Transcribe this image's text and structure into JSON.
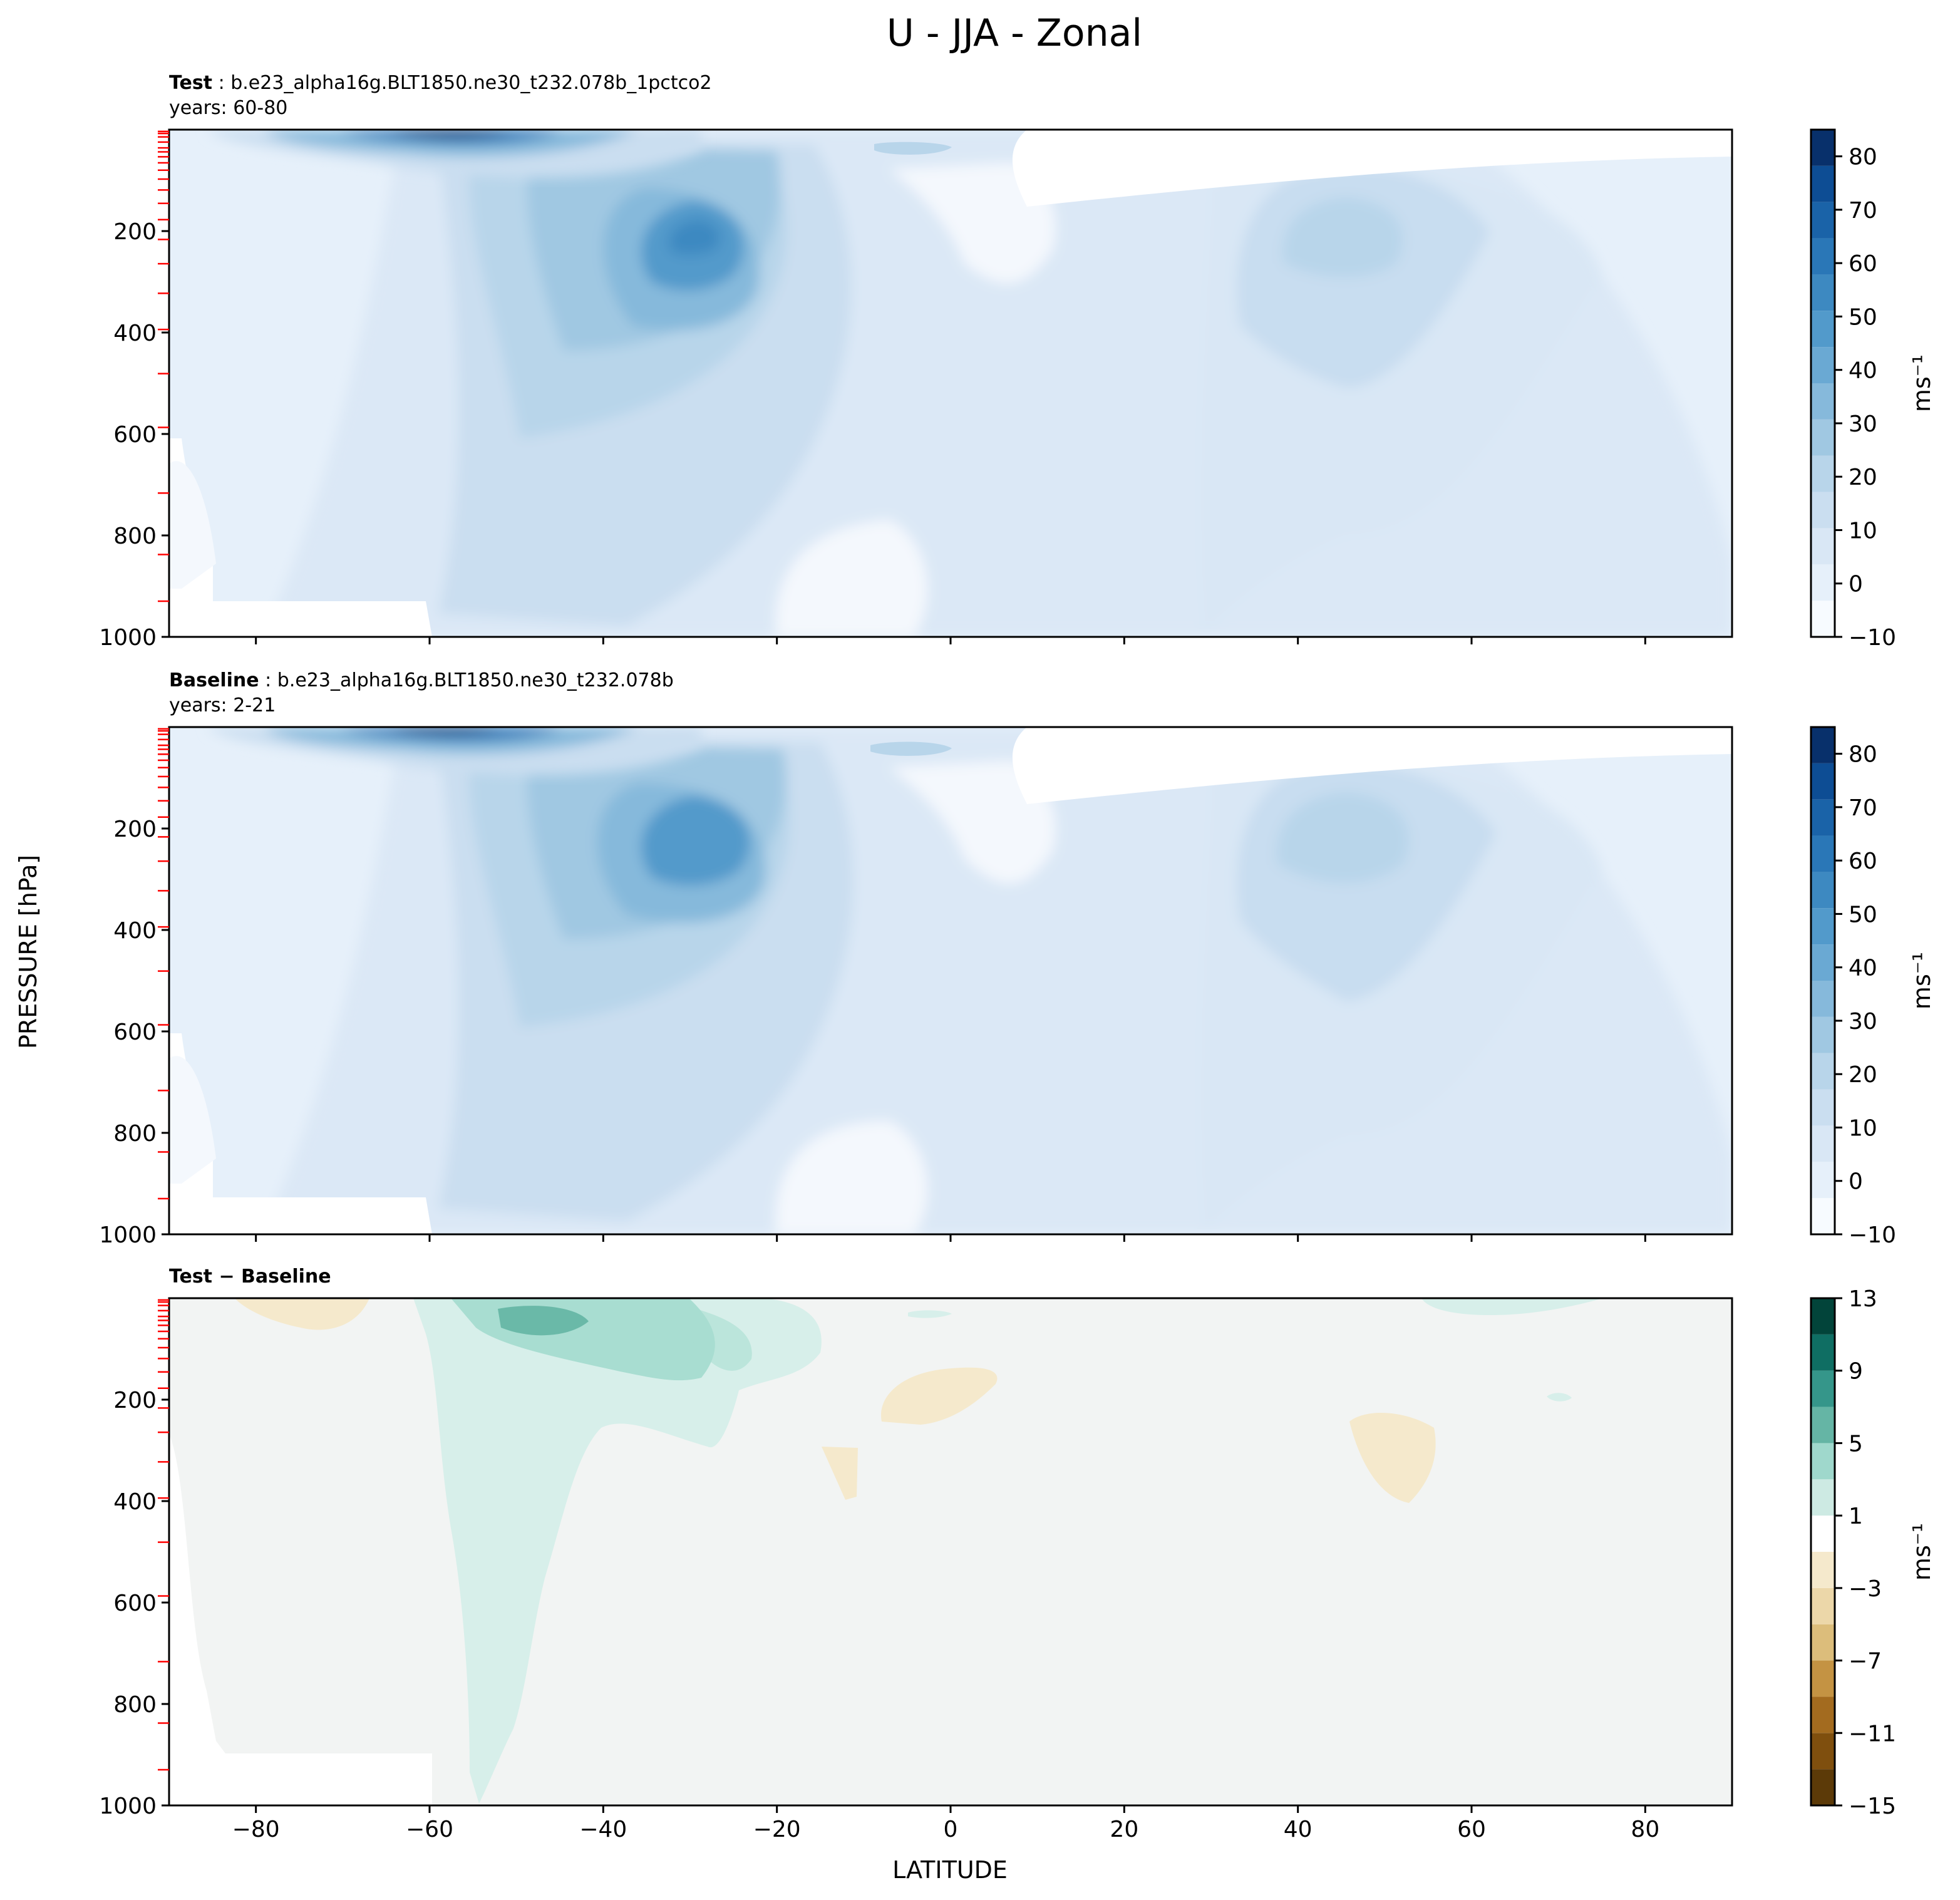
{
  "figure": {
    "title": "U - JJA - Zonal",
    "xlabel": "LATITUDE",
    "ylabel": "PRESSURE [hPa]"
  },
  "colors": {
    "blues": [
      "#f7fbff",
      "#e6f0fa",
      "#d9e7f5",
      "#cadef0",
      "#b8d5ea",
      "#a0c8e2",
      "#86b9db",
      "#6aa9d3",
      "#529acb",
      "#3d89c1",
      "#2a77b7",
      "#1a63a8",
      "#0d4d94",
      "#08306b"
    ],
    "diff_neg": [
      "#5c3a08",
      "#7f4f0e",
      "#a36b1f",
      "#c49343",
      "#dcbd7b",
      "#ecd7a9",
      "#f5e9cc"
    ],
    "diff_pos": [
      "#e9f5f2",
      "#cdeae3",
      "#9fd8cc",
      "#65b5a5",
      "#35968a",
      "#0f6e63",
      "#02443a"
    ],
    "diff_neutral": "#f2f4f3",
    "marker": "#ff0000"
  },
  "chart_data": [
    {
      "type": "heatmap",
      "panel": "test",
      "title_bold": "Test",
      "title_rest": " : b.e23_alpha16g.BLT1850.ne30_t232.078b_1pctco2",
      "subtitle": "years: 60-80",
      "x_range": [
        -90,
        90
      ],
      "y_range": [
        1000,
        0
      ],
      "xticks": [
        -80,
        -60,
        -40,
        -20,
        0,
        20,
        40,
        60,
        80
      ],
      "yticks": [
        200,
        400,
        600,
        800,
        1000
      ],
      "colorbar": {
        "label": "ms⁻¹",
        "ticks": [
          "80",
          "70",
          "60",
          "50",
          "40",
          "30",
          "20",
          "10",
          "0",
          "−10"
        ],
        "range": [
          -10,
          85
        ]
      },
      "jets": [
        {
          "lat": -57,
          "p": 0,
          "peak": 85
        },
        {
          "lat": -30,
          "p": 200,
          "peak": 45
        },
        {
          "lat": 46,
          "p": 200,
          "peak": 22
        }
      ]
    },
    {
      "type": "heatmap",
      "panel": "baseline",
      "title_bold": "Baseline",
      "title_rest": " : b.e23_alpha16g.BLT1850.ne30_t232.078b",
      "subtitle": "years: 2-21",
      "x_range": [
        -90,
        90
      ],
      "y_range": [
        1000,
        0
      ],
      "xticks": [
        -80,
        -60,
        -40,
        -20,
        0,
        20,
        40,
        60,
        80
      ],
      "yticks": [
        200,
        400,
        600,
        800,
        1000
      ],
      "colorbar": {
        "label": "ms⁻¹",
        "ticks": [
          "80",
          "70",
          "60",
          "50",
          "40",
          "30",
          "20",
          "10",
          "0",
          "−10"
        ],
        "range": [
          -10,
          85
        ]
      },
      "jets": [
        {
          "lat": -58,
          "p": 0,
          "peak": 82
        },
        {
          "lat": -29,
          "p": 200,
          "peak": 42
        },
        {
          "lat": 46,
          "p": 200,
          "peak": 24
        }
      ]
    },
    {
      "type": "heatmap",
      "panel": "difference",
      "title_bold": "Test − Baseline",
      "x_range": [
        -90,
        90
      ],
      "y_range": [
        1000,
        0
      ],
      "xticks": [
        -80,
        -60,
        -40,
        -20,
        0,
        20,
        40,
        60,
        80
      ],
      "xtick_labels": [
        "−80",
        "−60",
        "−40",
        "−20",
        "0",
        "20",
        "40",
        "60",
        "80"
      ],
      "yticks": [
        200,
        400,
        600,
        800,
        1000
      ],
      "colorbar": {
        "label": "ms⁻¹",
        "ticks": [
          "13",
          "9",
          "5",
          "1",
          "−3",
          "−7",
          "−11",
          "−15"
        ],
        "range": [
          -15,
          13
        ]
      },
      "features": [
        {
          "lat": -47,
          "p": 40,
          "value": 8
        },
        {
          "lat": -40,
          "p": 100,
          "value": 4
        },
        {
          "lat": -50,
          "p": 600,
          "value": 2
        },
        {
          "lat": -75,
          "p": 20,
          "value": -1
        },
        {
          "lat": -5,
          "p": 200,
          "value": -1
        },
        {
          "lat": 51,
          "p": 330,
          "value": -1
        }
      ]
    }
  ]
}
